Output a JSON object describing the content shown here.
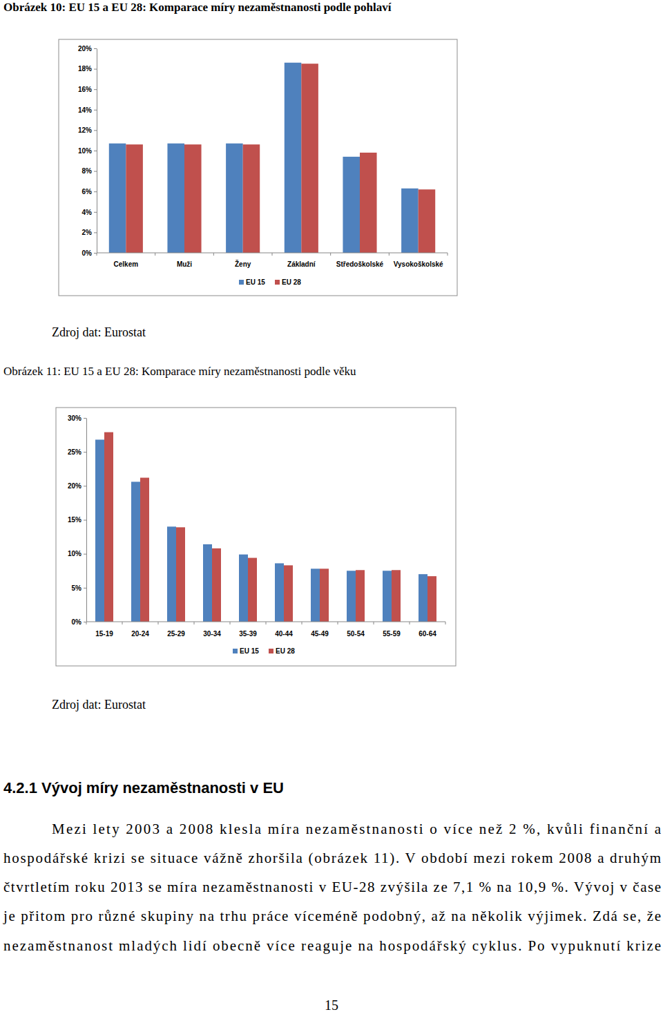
{
  "chart_data": [
    {
      "type": "bar",
      "title": "Obrázek 10: EU 15 a EU 28: Komparace míry nezaměstnanosti podle pohlaví",
      "categories": [
        "Celkem",
        "Muži",
        "Ženy",
        "Základní",
        "Středoškolské",
        "Vysokoškolské"
      ],
      "series": [
        {
          "name": "EU 15",
          "color": "#4f81bd",
          "values": [
            10.7,
            10.7,
            10.7,
            18.6,
            9.4,
            6.3
          ]
        },
        {
          "name": "EU 28",
          "color": "#c0504d",
          "values": [
            10.6,
            10.6,
            10.6,
            18.5,
            9.8,
            6.2
          ]
        }
      ],
      "ylim": [
        0,
        20
      ],
      "yticks": [
        {
          "value": 0,
          "label": "0%"
        },
        {
          "value": 2,
          "label": "2%"
        },
        {
          "value": 4,
          "label": "4%"
        },
        {
          "value": 6,
          "label": "6%"
        },
        {
          "value": 8,
          "label": "8%"
        },
        {
          "value": 10,
          "label": "10%"
        },
        {
          "value": 12,
          "label": "12%"
        },
        {
          "value": 14,
          "label": "14%"
        },
        {
          "value": 16,
          "label": "16%"
        },
        {
          "value": 18,
          "label": "18%"
        },
        {
          "value": 20,
          "label": "20%"
        }
      ],
      "grid": false,
      "legend": "bottom"
    },
    {
      "type": "bar",
      "title": "Obrázek 11: EU 15 a EU 28: Komparace míry nezaměstnanosti podle věku",
      "categories": [
        "15-19",
        "20-24",
        "25-29",
        "30-34",
        "35-39",
        "40-44",
        "45-49",
        "50-54",
        "55-59",
        "60-64"
      ],
      "series": [
        {
          "name": "EU 15",
          "color": "#4f81bd",
          "values": [
            26.8,
            20.6,
            14.0,
            11.4,
            9.9,
            8.6,
            7.8,
            7.5,
            7.5,
            7.0
          ]
        },
        {
          "name": "EU 28",
          "color": "#c0504d",
          "values": [
            27.9,
            21.2,
            13.9,
            10.8,
            9.4,
            8.3,
            7.8,
            7.6,
            7.6,
            6.7
          ]
        }
      ],
      "ylim": [
        0,
        30
      ],
      "yticks": [
        {
          "value": 0,
          "label": "0%"
        },
        {
          "value": 5,
          "label": "5%"
        },
        {
          "value": 10,
          "label": "10%"
        },
        {
          "value": 15,
          "label": "15%"
        },
        {
          "value": 20,
          "label": "20%"
        },
        {
          "value": 25,
          "label": "25%"
        },
        {
          "value": 30,
          "label": "30%"
        }
      ],
      "grid": false,
      "legend": "bottom"
    }
  ],
  "document": {
    "sources": [
      "Zdroj dat: Eurostat",
      "Zdroj dat: Eurostat"
    ],
    "heading": "4.2.1 Vývoj míry nezaměstnanosti v EU",
    "paragraph_lines": [
      "Mezi lety 2003 a 2008 klesla míra nezaměstnanosti o více než 2 %, kvůli finanční a",
      "hospodářské krizi se situace vážně zhoršila (obrázek 11). V období mezi rokem 2008 a druhým",
      "čtvrtletím roku 2013 se míra nezaměstnanosti v EU-28 zvýšila ze 7,1 % na 10,9 %. Vývoj v čase",
      "je přitom pro různé skupiny na trhu práce víceméně podobný, až na několik výjimek. Zdá se, že",
      "nezaměstnanost mladých lidí obecně více reaguje na hospodářský cyklus. Po vypuknutí krize"
    ],
    "page_number": "15"
  }
}
